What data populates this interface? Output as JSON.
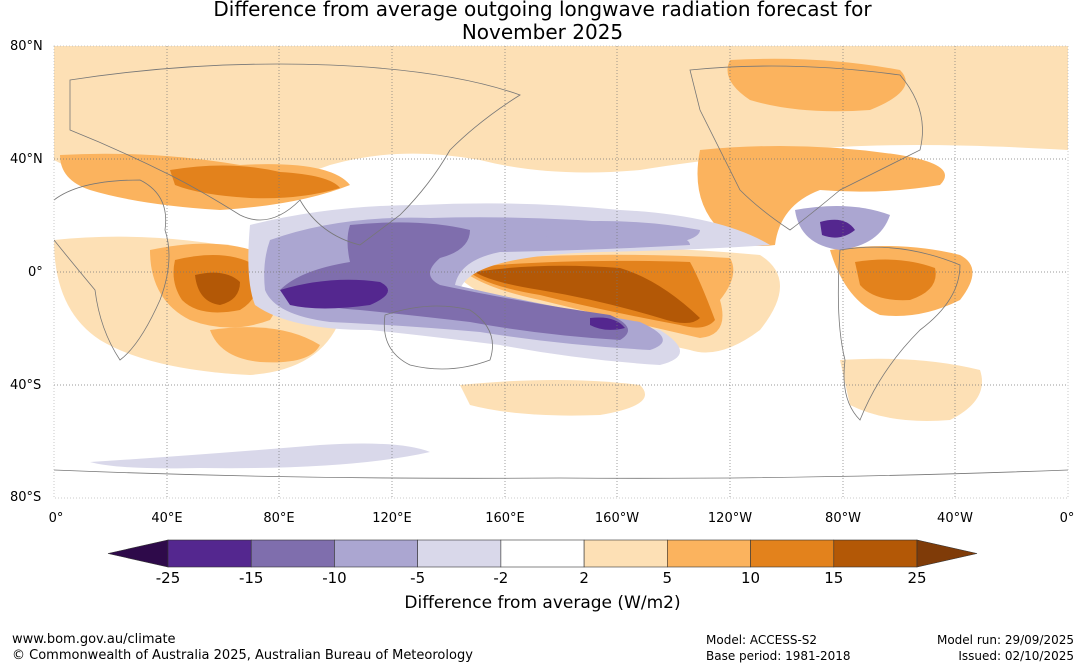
{
  "title": {
    "line1": "Difference from average outgoing longwave radiation forecast for",
    "line2": "November 2025"
  },
  "lat_labels": [
    "80°N",
    "40°N",
    "0°",
    "40°S",
    "80°S"
  ],
  "lon_labels": [
    "0°",
    "40°E",
    "80°E",
    "120°E",
    "160°E",
    "160°W",
    "120°W",
    "80°W",
    "40°W",
    "0°"
  ],
  "colorbar": {
    "title": "Difference from average (W/m2)",
    "ticks": [
      "-25",
      "-15",
      "-10",
      "-5",
      "-2",
      "2",
      "5",
      "10",
      "15",
      "25"
    ],
    "colors": [
      "#2e0a4a",
      "#54278f",
      "#7f6ead",
      "#aba6d1",
      "#d9d8ea",
      "#ffffff",
      "#fde0b5",
      "#fbb35e",
      "#e3821c",
      "#b35806",
      "#7f3b08"
    ]
  },
  "footer": {
    "url": "www.bom.gov.au/climate",
    "copyright": "© Commonwealth of Australia 2025, Australian Bureau of Meteorology",
    "model": "Model: ACCESS-S2",
    "base_period": "Base period: 1981-2018",
    "model_run": "Model run: 29/09/2025",
    "issued": "Issued: 02/10/2025"
  }
}
